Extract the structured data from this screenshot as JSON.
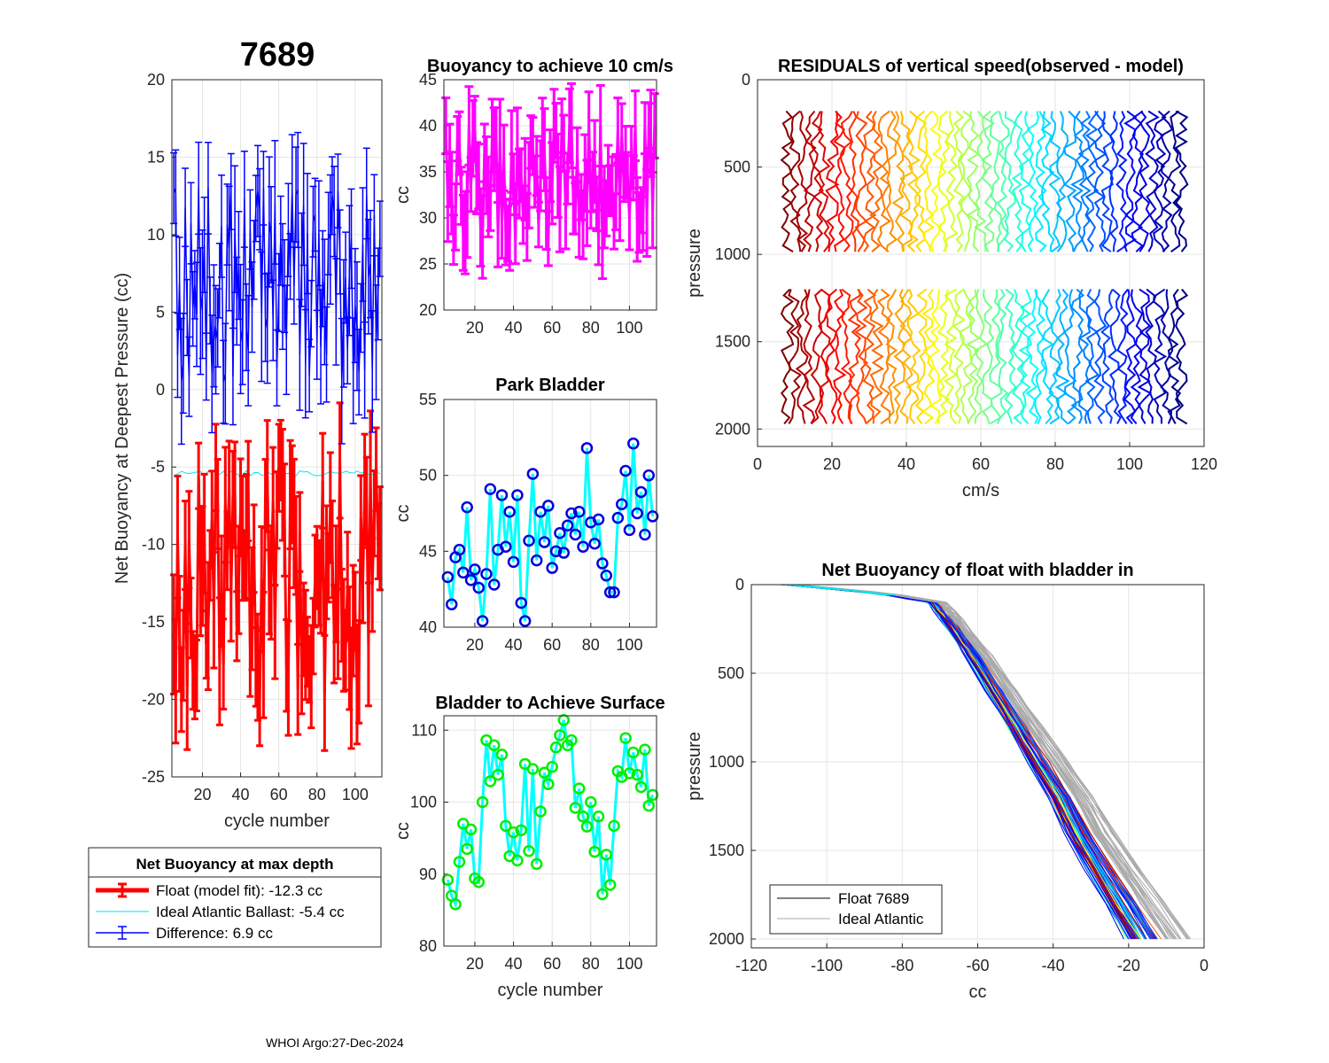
{
  "figure": {
    "float_id": "7689",
    "footer": "WHOI Argo:27-Dec-2024"
  },
  "colors": {
    "float": "#ff0000",
    "ideal": "#00e5ee",
    "difference": "#0000ff",
    "buoyancy10": "#ff00ff",
    "marker_blue": "#0000dd",
    "line_cyan": "#00ffff",
    "marker_green": "#00ee00",
    "gray": "#aaaaaa"
  },
  "legend_main": {
    "title": "Net Buoyancy at max depth",
    "entries": [
      {
        "label": "Float (model fit): -12.3 cc",
        "color": "#ff0000"
      },
      {
        "label": "Ideal Atlantic Ballast:  -5.4 cc",
        "color": "#00e5ee"
      },
      {
        "label": "Difference:   6.9 cc",
        "color": "#0000ff"
      }
    ]
  },
  "legend_profiles": {
    "entries": [
      {
        "label": "Float 7689",
        "color": "#000000"
      },
      {
        "label": "Ideal Atlantic",
        "color": "#aaaaaa"
      }
    ]
  },
  "chart_data": [
    {
      "id": "net_buoyancy",
      "type": "line",
      "title": "7689",
      "xlabel": "cycle number",
      "ylabel": "Net Buoyancy at Deepest Pressure (cc)",
      "xlim": [
        4,
        114
      ],
      "ylim": [
        -25,
        20
      ],
      "xticks": [
        20,
        40,
        60,
        80,
        100
      ],
      "yticks": [
        -25,
        -20,
        -15,
        -10,
        -5,
        0,
        5,
        10,
        15,
        20
      ],
      "grid": true,
      "series": [
        {
          "name": "Float (model fit)",
          "mean": -12.3,
          "min": -20,
          "max": -4.5,
          "error": 3.5,
          "color": "#ff0000"
        },
        {
          "name": "Ideal Atlantic Ballast",
          "mean": -5.4,
          "color": "#00e5ee"
        },
        {
          "name": "Difference",
          "mean": 6.9,
          "min": 0,
          "max": 13,
          "error": 3.5,
          "color": "#0000ff"
        }
      ]
    },
    {
      "id": "buoyancy_10cms",
      "type": "line",
      "title": "Buoyancy to achieve 10 cm/s",
      "xlabel": "",
      "ylabel": "cc",
      "xlim": [
        4,
        114
      ],
      "ylim": [
        20,
        45
      ],
      "xticks": [
        20,
        40,
        60,
        80,
        100
      ],
      "yticks": [
        20,
        25,
        30,
        35,
        40,
        45
      ],
      "grid": true,
      "series": [
        {
          "name": "buoyancy",
          "mean": 34,
          "min": 27,
          "max": 40,
          "error": 4,
          "color": "#ff00ff"
        }
      ]
    },
    {
      "id": "park_bladder",
      "type": "line",
      "title": "Park Bladder",
      "xlabel": "",
      "ylabel": "cc",
      "xlim": [
        4,
        114
      ],
      "ylim": [
        40,
        55
      ],
      "xticks": [
        20,
        40,
        60,
        80,
        100
      ],
      "yticks": [
        40,
        45,
        50,
        55
      ],
      "grid": true,
      "series": [
        {
          "name": "park bladder",
          "x": [
            6,
            8,
            10,
            12,
            14,
            16,
            18,
            20,
            22,
            24,
            26,
            28,
            30,
            32,
            34,
            36,
            38,
            40,
            42,
            44,
            46,
            48,
            50,
            52,
            54,
            56,
            58,
            60,
            62,
            64,
            66,
            68,
            70,
            72,
            74,
            76,
            78,
            80,
            82,
            84,
            86,
            88,
            90,
            92,
            94,
            96,
            98,
            100,
            102,
            104,
            106,
            108,
            110,
            112
          ],
          "values": [
            43.3,
            41.5,
            44.6,
            45.1,
            43.6,
            47.9,
            43.1,
            43.8,
            42.6,
            40.4,
            43.5,
            49.1,
            42.8,
            45.1,
            48.7,
            45.3,
            47.6,
            44.3,
            48.7,
            41.6,
            40.4,
            45.7,
            50.1,
            44.4,
            47.6,
            45.6,
            48.0,
            43.9,
            45.0,
            46.2,
            44.9,
            46.7,
            47.5,
            46.1,
            47.6,
            45.3,
            51.8,
            46.9,
            45.5,
            47.1,
            44.2,
            43.4,
            42.3,
            42.3,
            47.2,
            48.1,
            50.3,
            46.4,
            52.1,
            47.5,
            48.9,
            46.1,
            50.0,
            47.3
          ],
          "color": "#00ffff",
          "marker_color": "#0000dd"
        }
      ]
    },
    {
      "id": "bladder_surface",
      "type": "line",
      "title": "Bladder to Achieve Surface",
      "xlabel": "cycle number",
      "ylabel": "cc",
      "xlim": [
        4,
        114
      ],
      "ylim": [
        80,
        112
      ],
      "xticks": [
        20,
        40,
        60,
        80,
        100
      ],
      "yticks": [
        80,
        90,
        100,
        110
      ],
      "grid": true,
      "series": [
        {
          "name": "bladder to surface",
          "x": [
            6,
            8,
            10,
            12,
            14,
            16,
            18,
            20,
            22,
            24,
            26,
            28,
            30,
            32,
            34,
            36,
            38,
            40,
            42,
            44,
            46,
            48,
            50,
            52,
            54,
            56,
            58,
            60,
            62,
            64,
            66,
            68,
            70,
            72,
            74,
            76,
            78,
            80,
            82,
            84,
            86,
            88,
            90,
            92,
            94,
            96,
            98,
            100,
            102,
            104,
            106,
            108,
            110,
            112
          ],
          "values": [
            89.2,
            87.0,
            85.8,
            91.7,
            97.0,
            93.5,
            96.2,
            89.4,
            88.9,
            100.0,
            108.6,
            102.9,
            107.9,
            103.8,
            106.6,
            96.7,
            92.5,
            95.8,
            91.9,
            96.1,
            105.3,
            93.2,
            104.6,
            91.4,
            98.7,
            104.1,
            102.5,
            104.9,
            107.6,
            109.3,
            111.4,
            107.9,
            108.6,
            99.2,
            101.9,
            98.0,
            96.6,
            100.0,
            93.1,
            98.0,
            87.2,
            92.7,
            88.5,
            96.7,
            104.3,
            103.5,
            108.9,
            104.0,
            106.9,
            103.8,
            102.1,
            107.3,
            99.5,
            101.0
          ],
          "color": "#00ffff",
          "marker_color": "#00ee00"
        }
      ]
    },
    {
      "id": "residuals",
      "type": "line",
      "title": "RESIDUALS of vertical speed(observed - model)",
      "xlabel": "cm/s",
      "ylabel": "pressure",
      "xlim": [
        0,
        120
      ],
      "ylim": [
        0,
        2100
      ],
      "xticks": [
        0,
        20,
        40,
        60,
        80,
        100,
        120
      ],
      "yticks": [
        0,
        500,
        1000,
        1500,
        2000
      ],
      "y_reversed": true,
      "grid": true,
      "profile_count": 54,
      "offset_start": 8,
      "offset_step": 2,
      "segments": [
        [
          180,
          1010
        ],
        [
          1200,
          1990
        ]
      ],
      "colormap": "jet"
    },
    {
      "id": "net_buoyancy_profile",
      "type": "line",
      "title": "Net Buoyancy of float with bladder in",
      "xlabel": "cc",
      "ylabel": "pressure",
      "xlim": [
        -120,
        0
      ],
      "ylim": [
        0,
        2050
      ],
      "xticks": [
        -120,
        -100,
        -80,
        -60,
        -40,
        -20,
        0
      ],
      "yticks": [
        0,
        500,
        1000,
        1500,
        2000
      ],
      "y_reversed": true,
      "grid": true,
      "reference_profile": {
        "pressure": [
          0,
          50,
          100,
          200,
          400,
          600,
          800,
          1000,
          1200,
          1400,
          1600,
          1800,
          2000
        ],
        "cc": [
          -110,
          -85,
          -71,
          -67,
          -60,
          -54,
          -48,
          -42,
          -36,
          -31,
          -25,
          -19,
          -13
        ]
      }
    }
  ]
}
